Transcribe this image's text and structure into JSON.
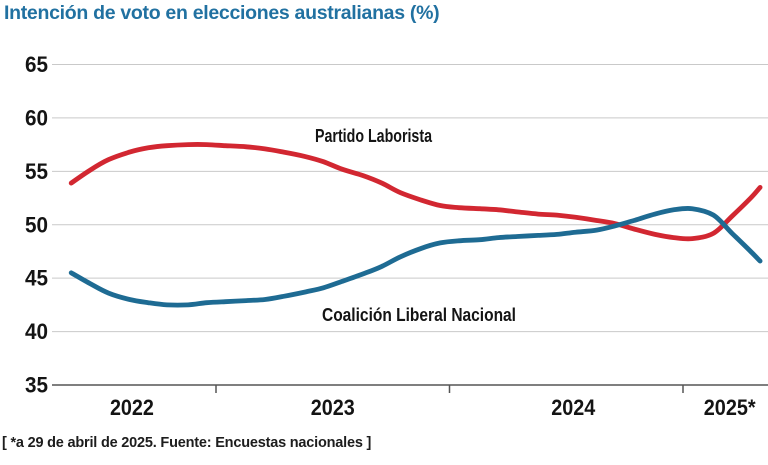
{
  "source_note": "[ *a 29 de abril de 2025. Fuente: Encuestas nacionales ]",
  "colors": {
    "labor": "#d22731",
    "coalition": "#1e6b93",
    "title_blue": "#2171a1",
    "grid": "#c9c9c9",
    "axis": "#555555",
    "label_text": "#141414"
  },
  "chart_data": {
    "type": "line",
    "title": "Intención de voto en elecciones australianas (%)",
    "xlabel": "",
    "ylabel": "",
    "x_unit": "decimal_year",
    "xlim": [
      2022.3,
      2025.36
    ],
    "ylim": [
      35,
      65
    ],
    "yticks": [
      65,
      60,
      55,
      50,
      45,
      40,
      35
    ],
    "grid": "horizontal",
    "legend": "inline-labels",
    "x_boundary_ticks": [
      2023,
      2024,
      2025
    ],
    "x_tick_labels": [
      {
        "text": "2022",
        "year": 2022.64
      },
      {
        "text": "2023",
        "year": 2023.5
      },
      {
        "text": "2024",
        "year": 2024.53
      },
      {
        "text": "2025*",
        "year": 2025.2
      }
    ],
    "x": [
      2022.38,
      2022.46,
      2022.54,
      2022.63,
      2022.71,
      2022.79,
      2022.88,
      2022.96,
      2023.04,
      2023.13,
      2023.21,
      2023.29,
      2023.38,
      2023.46,
      2023.54,
      2023.63,
      2023.71,
      2023.79,
      2023.88,
      2023.96,
      2024.04,
      2024.13,
      2024.21,
      2024.29,
      2024.38,
      2024.46,
      2024.54,
      2024.63,
      2024.71,
      2024.79,
      2024.88,
      2024.96,
      2025.04,
      2025.13,
      2025.21,
      2025.29,
      2025.33
    ],
    "series": [
      {
        "name": "Partido Laborista",
        "color_key": "labor",
        "values": [
          53.9,
          55.1,
          56.1,
          56.8,
          57.2,
          57.4,
          57.5,
          57.5,
          57.4,
          57.3,
          57.1,
          56.8,
          56.4,
          55.9,
          55.2,
          54.6,
          53.9,
          53.0,
          52.3,
          51.8,
          51.6,
          51.5,
          51.4,
          51.2,
          51.0,
          50.9,
          50.7,
          50.4,
          50.1,
          49.6,
          49.1,
          48.8,
          48.7,
          49.2,
          50.8,
          52.5,
          53.5
        ]
      },
      {
        "name": "Coalición Liberal Nacional",
        "color_key": "coalition",
        "values": [
          45.5,
          44.5,
          43.6,
          43.0,
          42.7,
          42.5,
          42.5,
          42.7,
          42.8,
          42.9,
          43.0,
          43.3,
          43.7,
          44.1,
          44.7,
          45.4,
          46.1,
          47.0,
          47.8,
          48.3,
          48.5,
          48.6,
          48.8,
          48.9,
          49.0,
          49.1,
          49.3,
          49.5,
          49.9,
          50.4,
          51.0,
          51.4,
          51.5,
          50.9,
          49.2,
          47.5,
          46.6
        ]
      }
    ]
  }
}
